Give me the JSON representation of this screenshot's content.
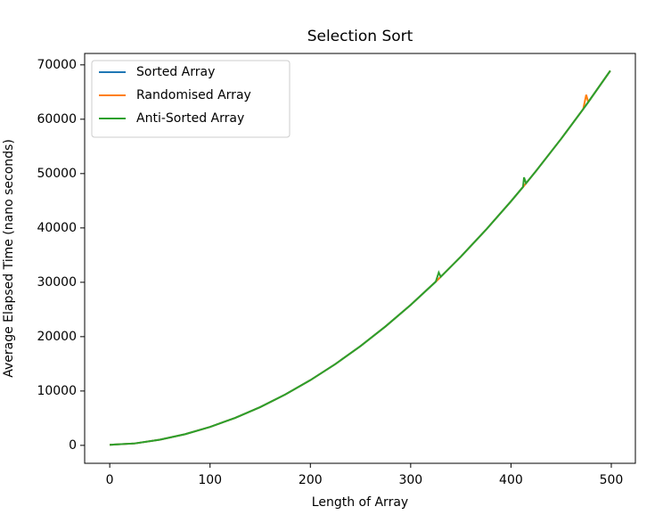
{
  "chart_data": {
    "type": "line",
    "title": "Selection Sort",
    "x_label": "Length of Array",
    "y_label": "Average Elapsed Time (nano seconds)",
    "x": [
      0,
      25,
      50,
      75,
      100,
      125,
      150,
      175,
      200,
      225,
      250,
      275,
      300,
      325,
      328,
      330,
      350,
      375,
      400,
      412,
      413,
      415,
      425,
      450,
      472,
      475,
      477,
      499
    ],
    "series": [
      {
        "name": "Sorted Array",
        "color": "#1f77b4",
        "values": [
          100,
          357,
          1040,
          2051,
          3387,
          5051,
          7040,
          9357,
          12000,
          14970,
          18266,
          21890,
          25842,
          30116,
          30650,
          31010,
          34718,
          39649,
          44904,
          47542,
          47766,
          48214,
          50487,
          56396,
          61867,
          62632,
          63146,
          68926
        ]
      },
      {
        "name": "Randomised Array",
        "color": "#ff7f0e",
        "values": [
          100,
          357,
          1040,
          2051,
          3387,
          5051,
          7040,
          9357,
          12000,
          14970,
          18266,
          21890,
          25842,
          30116,
          30650,
          31010,
          34718,
          39649,
          44904,
          47542,
          47766,
          48214,
          50487,
          56396,
          61867,
          64500,
          63146,
          68926
        ]
      },
      {
        "name": "Anti-Sorted Array",
        "color": "#2ca02c",
        "values": [
          100,
          357,
          1040,
          2051,
          3387,
          5051,
          7040,
          9357,
          12000,
          14970,
          18266,
          21890,
          25842,
          30116,
          31800,
          31010,
          34718,
          39649,
          44904,
          47542,
          49300,
          48214,
          50487,
          56396,
          61867,
          62632,
          63146,
          68926
        ]
      }
    ],
    "xlim": [
      -25,
      524
    ],
    "ylim": [
      -3300,
      72100
    ],
    "xticks": [
      0,
      100,
      200,
      300,
      400,
      500
    ],
    "yticks": [
      0,
      10000,
      20000,
      30000,
      40000,
      50000,
      60000,
      70000
    ],
    "legend": "upper left"
  }
}
